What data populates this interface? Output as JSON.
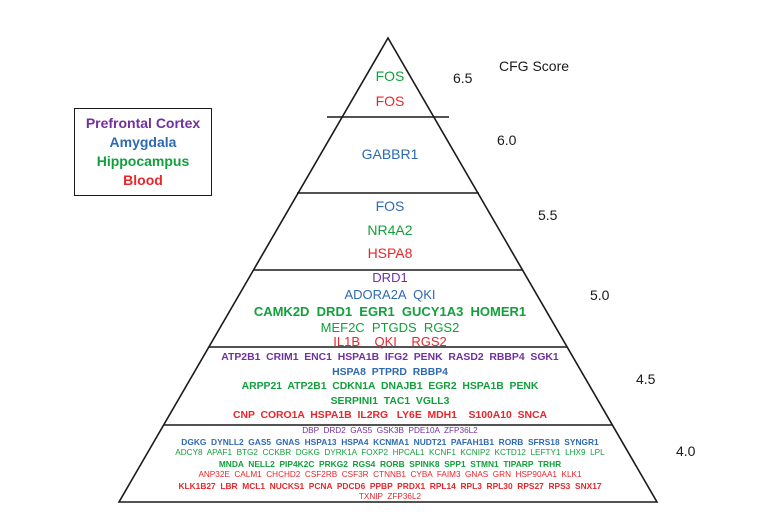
{
  "legend": {
    "prefrontal": "Prefrontal Cortex",
    "amygdala": "Amygdala",
    "hippocampus": "Hippocampus",
    "blood": "Blood"
  },
  "colors": {
    "prefrontal": "#7030a0",
    "amygdala": "#2e6ab3",
    "hippocampus": "#12a03c",
    "blood": "#e8262b"
  },
  "axis_title": "CFG Score",
  "scores": [
    "6.5",
    "6.0",
    "5.5",
    "5.0",
    "4.5",
    "4.0"
  ],
  "tier1": {
    "hippocampus": "FOS",
    "blood": "FOS"
  },
  "tier2": {
    "amygdala": "GABBR1"
  },
  "tier3": {
    "amygdala": "FOS",
    "hippocampus": "NR4A2",
    "blood": "HSPA8"
  },
  "tier4": {
    "prefrontal": "DRD1",
    "amygdala": "ADORA2A  QKI",
    "hippocampus_1": "CAMK2D  DRD1  EGR1  GUCY1A3  HOMER1",
    "hippocampus_2": "MEF2C  PTGDS  RGS2",
    "blood": "IL1B    QKI    RGS2"
  },
  "tier5": {
    "prefrontal": "ATP2B1  CRIM1  ENC1  HSPA1B  IFG2  PENK  RASD2  RBBP4  SGK1",
    "amygdala": "HSPA8  PTPRD  RBBP4",
    "hippocampus_1": "ARPP21  ATP2B1  CDKN1A  DNAJB1  EGR2  HSPA1B  PENK",
    "hippocampus_2": "SERPINI1  TAC1  VGLL3",
    "blood": "CNP  CORO1A  HSPA1B  IL2RG   LY6E  MDH1    S100A10  SNCA"
  },
  "tier6": {
    "prefrontal": "DBP  DRD2  GAS5  GSK3B  PDE10A  ZFP36L2",
    "amygdala": "DGKG  DYNLL2  GAS5  GNAS  HSPA13  HSPA4  KCNMA1  NUDT21  PAFAH1B1  RORB  SFRS18  SYNGR1",
    "hippocampus_1": "ADCY8  APAF1  BTG2  CCKBR  DGKG  DYRK1A  FOXP2  HPCAL1  KCNF1  KCNIP2  KCTD12  LEFTY1  LHX9  LPL",
    "hippocampus_2": "MNDA  NELL2  PIP4K2C  PRKG2  RGS4  RORB  SPINK8  SPP1  STMN1  TIPARP  TRHR",
    "blood_1": "ANP32E  CALM1  CHCHD2  CSF2RB  CSF3R  CTNNB1  CYBA  FAIM3  GNAS  GRN  HSP90AA1  KLK1",
    "blood_2": "KLK1B27  LBR  MCL1  NUCKS1  PCNA  PDCD6  PPBP  PRDX1  RPL14  RPL3  RPL30  RPS27  RPS3  SNX17",
    "blood_3": "TXNIP  ZFP36L2"
  }
}
